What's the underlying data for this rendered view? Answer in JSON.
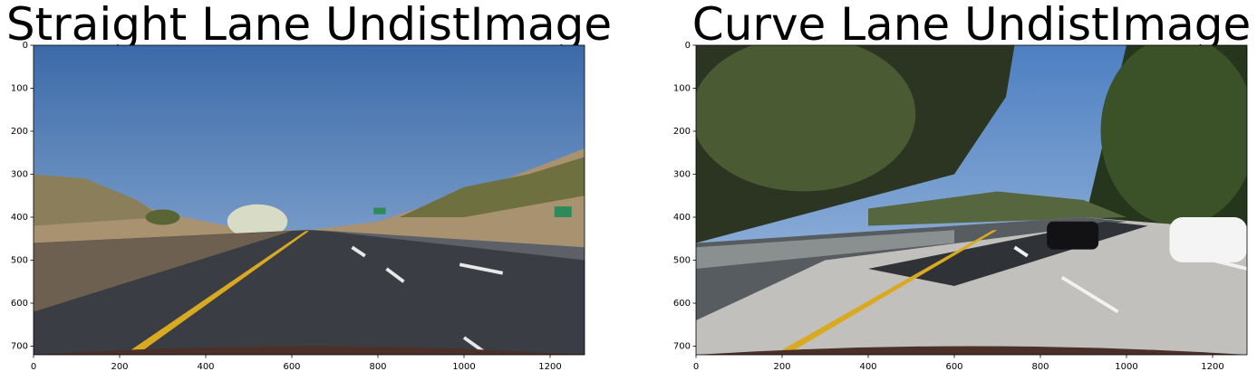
{
  "chart_data": [
    {
      "type": "image",
      "title": "Straight Lane UndistImage",
      "xlim": [
        0,
        1280
      ],
      "ylim": [
        720,
        0
      ],
      "xticks": [
        0,
        200,
        400,
        600,
        800,
        1000,
        1200
      ],
      "yticks": [
        0,
        100,
        200,
        300,
        400,
        500,
        600,
        700
      ]
    },
    {
      "type": "image",
      "title": "Curve Lane UndistImage",
      "xlim": [
        0,
        1280
      ],
      "ylim": [
        720,
        0
      ],
      "xticks": [
        0,
        200,
        400,
        600,
        800,
        1000,
        1200
      ],
      "yticks": [
        0,
        100,
        200,
        300,
        400,
        500,
        600,
        700
      ]
    }
  ]
}
